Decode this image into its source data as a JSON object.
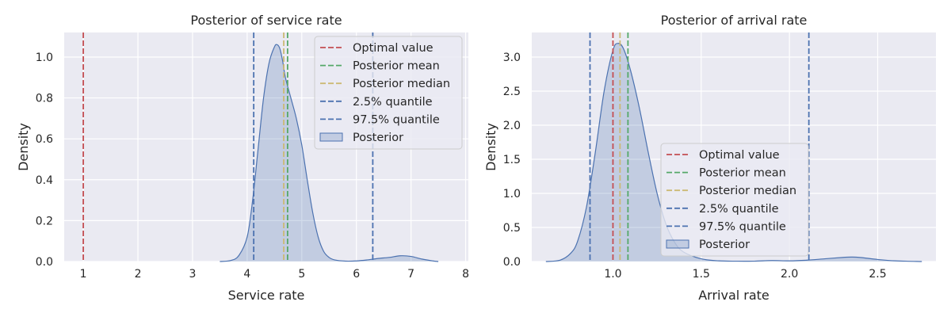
{
  "chart_data": [
    {
      "type": "area",
      "title": "Posterior of service rate",
      "xlabel": "Service rate",
      "ylabel": "Density",
      "xlim": [
        0.65,
        8.05
      ],
      "ylim": [
        0,
        1.12
      ],
      "xticks": [
        1,
        2,
        3,
        4,
        5,
        6,
        7,
        8
      ],
      "yticks": [
        0.0,
        0.2,
        0.4,
        0.6,
        0.8,
        1.0
      ],
      "xtick_labels": [
        "1",
        "2",
        "3",
        "4",
        "5",
        "6",
        "7",
        "8"
      ],
      "ytick_labels": [
        "0.0",
        "0.2",
        "0.4",
        "0.6",
        "0.8",
        "1.0"
      ],
      "grid": true,
      "legend_position": "top-right",
      "vlines": [
        {
          "name": "Optimal value",
          "x": 1.0,
          "color": "#c44e52"
        },
        {
          "name": "Posterior mean",
          "x": 4.74,
          "color": "#55a868"
        },
        {
          "name": "Posterior median",
          "x": 4.67,
          "color": "#ccb974"
        },
        {
          "name": "2.5% quantile",
          "x": 4.12,
          "color": "#4c72b0"
        },
        {
          "name": "97.5% quantile",
          "x": 6.3,
          "color": "#4c72b0"
        }
      ],
      "density": {
        "name": "Posterior",
        "color": "#4c72b0",
        "x": [
          3.5,
          3.7,
          3.85,
          4.0,
          4.1,
          4.2,
          4.3,
          4.4,
          4.5,
          4.55,
          4.6,
          4.65,
          4.7,
          4.8,
          4.9,
          5.0,
          5.1,
          5.2,
          5.3,
          5.4,
          5.5,
          5.6,
          5.8,
          6.0,
          6.2,
          6.4,
          6.6,
          6.8,
          7.0,
          7.2,
          7.4,
          7.5
        ],
        "y": [
          0.0,
          0.005,
          0.03,
          0.12,
          0.3,
          0.55,
          0.8,
          0.97,
          1.05,
          1.06,
          1.04,
          0.98,
          0.9,
          0.8,
          0.7,
          0.57,
          0.4,
          0.24,
          0.12,
          0.05,
          0.02,
          0.008,
          0.002,
          0.003,
          0.008,
          0.015,
          0.02,
          0.028,
          0.025,
          0.012,
          0.003,
          0.0
        ]
      },
      "legend": [
        "Optimal value",
        "Posterior mean",
        "Posterior median",
        "2.5% quantile",
        "97.5% quantile",
        "Posterior"
      ]
    },
    {
      "type": "area",
      "title": "Posterior of arrival rate",
      "xlabel": "Arrival rate",
      "ylabel": "Density",
      "xlim": [
        0.54,
        2.83
      ],
      "ylim": [
        0,
        3.36
      ],
      "xticks": [
        1.0,
        1.5,
        2.0,
        2.5
      ],
      "yticks": [
        0.0,
        0.5,
        1.0,
        1.5,
        2.0,
        2.5,
        3.0
      ],
      "xtick_labels": [
        "1.0",
        "1.5",
        "2.0",
        "2.5"
      ],
      "ytick_labels": [
        "0.0",
        "0.5",
        "1.0",
        "1.5",
        "2.0",
        "2.5",
        "3.0"
      ],
      "grid": true,
      "legend_position": "center-right",
      "vlines": [
        {
          "name": "Optimal value",
          "x": 1.0,
          "color": "#c44e52"
        },
        {
          "name": "Posterior mean",
          "x": 1.085,
          "color": "#55a868"
        },
        {
          "name": "Posterior median",
          "x": 1.04,
          "color": "#ccb974"
        },
        {
          "name": "2.5% quantile",
          "x": 0.87,
          "color": "#4c72b0"
        },
        {
          "name": "97.5% quantile",
          "x": 2.11,
          "color": "#4c72b0"
        }
      ],
      "density": {
        "name": "Posterior",
        "color": "#4c72b0",
        "x": [
          0.62,
          0.7,
          0.76,
          0.8,
          0.85,
          0.9,
          0.95,
          1.0,
          1.03,
          1.06,
          1.1,
          1.15,
          1.2,
          1.25,
          1.3,
          1.35,
          1.4,
          1.5,
          1.6,
          1.7,
          1.8,
          1.9,
          2.0,
          2.1,
          2.2,
          2.3,
          2.35,
          2.4,
          2.5,
          2.6,
          2.75
        ],
        "y": [
          0.0,
          0.02,
          0.12,
          0.3,
          0.8,
          1.6,
          2.5,
          3.1,
          3.2,
          3.12,
          2.8,
          2.25,
          1.6,
          1.0,
          0.55,
          0.28,
          0.14,
          0.04,
          0.01,
          0.005,
          0.005,
          0.015,
          0.01,
          0.02,
          0.04,
          0.06,
          0.065,
          0.06,
          0.03,
          0.01,
          0.0
        ]
      },
      "legend": [
        "Optimal value",
        "Posterior mean",
        "Posterior median",
        "2.5% quantile",
        "97.5% quantile",
        "Posterior"
      ]
    }
  ]
}
